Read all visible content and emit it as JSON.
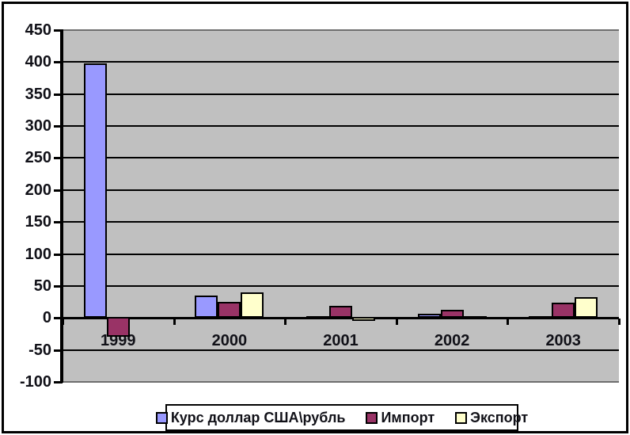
{
  "chart_data": {
    "type": "bar",
    "title": "",
    "xlabel": "",
    "ylabel": "",
    "categories": [
      "1999",
      "2000",
      "2001",
      "2002",
      "2003"
    ],
    "series": [
      {
        "name": "Курс доллар США\\рубль",
        "color": "#9999FF",
        "values": [
          398,
          35,
          3,
          6,
          3
        ]
      },
      {
        "name": "Импорт",
        "color": "#993366",
        "values": [
          -30,
          25,
          19,
          13,
          24
        ]
      },
      {
        "name": "Экспорт",
        "color": "#FFFFCC",
        "values": [
          0,
          40,
          -5,
          1,
          33
        ]
      }
    ],
    "ylim": [
      -100,
      450
    ],
    "ytick_step": 50,
    "ytick_labels": [
      "450",
      "400",
      "350",
      "300",
      "250",
      "200",
      "150",
      "100",
      "50",
      "0",
      "-50",
      "-100"
    ],
    "grid": true,
    "legend_position": "bottom",
    "plot_bg": "#C0C0C0",
    "axis_color": "#000000",
    "outer_border_color": "#000000"
  }
}
